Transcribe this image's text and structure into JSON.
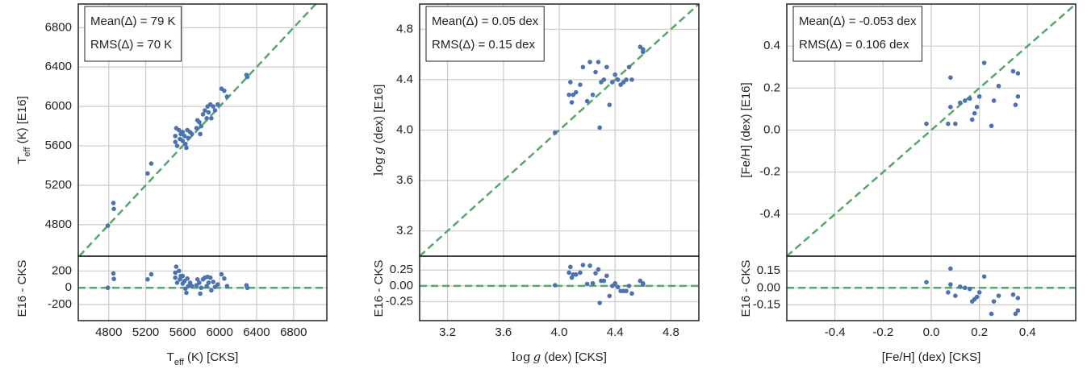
{
  "chart_data": [
    {
      "type": "scatter",
      "color": "#4c72b0",
      "ref_line": "identity",
      "ref_color": "#55a868",
      "grid": true,
      "label_style": "subscript",
      "xlabel": [
        "T",
        "eff",
        " (K) [CKS]"
      ],
      "ylabel": [
        "T",
        "eff",
        " (K) [E16]"
      ],
      "annotations": [
        "Mean(Δ) = 79 K",
        "RMS(Δ) = 70 K"
      ],
      "xlim": [
        4470,
        7160
      ],
      "ylim": [
        4480,
        7040
      ],
      "xticks": [
        4800,
        5200,
        5600,
        6000,
        6400,
        6800
      ],
      "yticks": [
        4800,
        5200,
        5600,
        6000,
        6400,
        6800
      ],
      "x": [
        4790,
        4850,
        4855,
        5220,
        5260,
        5520,
        5520,
        5530,
        5540,
        5560,
        5570,
        5580,
        5600,
        5600,
        5620,
        5630,
        5640,
        5650,
        5660,
        5680,
        5700,
        5750,
        5760,
        5780,
        5790,
        5800,
        5820,
        5840,
        5860,
        5870,
        5880,
        5900,
        5910,
        5930,
        5950,
        5980,
        6020,
        6050,
        6080,
        6290,
        6300
      ],
      "y": [
        4790,
        5020,
        4960,
        5320,
        5420,
        5640,
        5700,
        5780,
        5600,
        5760,
        5670,
        5720,
        5740,
        5650,
        5700,
        5620,
        5580,
        5760,
        5680,
        5740,
        5720,
        5780,
        5860,
        5840,
        5720,
        5800,
        5920,
        5960,
        5880,
        6000,
        5940,
        6020,
        5880,
        6000,
        5960,
        6020,
        6180,
        6160,
        6100,
        6320,
        6300
      ],
      "residual": {
        "type": "scatter",
        "ref_line": "zero",
        "ylabel": "E16 - CKS",
        "ylim": [
          -390,
          375
        ],
        "yticks": [
          -200,
          0,
          200
        ],
        "x": [
          4790,
          4850,
          4855,
          5220,
          5260,
          5520,
          5520,
          5530,
          5540,
          5560,
          5570,
          5580,
          5600,
          5600,
          5620,
          5630,
          5640,
          5650,
          5660,
          5680,
          5700,
          5750,
          5760,
          5780,
          5790,
          5800,
          5820,
          5840,
          5860,
          5870,
          5880,
          5900,
          5910,
          5930,
          5950,
          5980,
          6020,
          6050,
          6080,
          6290,
          6300
        ],
        "y": [
          0,
          170,
          105,
          100,
          160,
          120,
          180,
          250,
          60,
          200,
          100,
          140,
          140,
          50,
          80,
          -10,
          -60,
          110,
          20,
          60,
          20,
          30,
          100,
          60,
          -70,
          0,
          100,
          120,
          20,
          130,
          60,
          120,
          -30,
          70,
          10,
          40,
          160,
          110,
          20,
          30,
          0
        ]
      }
    },
    {
      "type": "scatter",
      "color": "#4c72b0",
      "ref_line": "identity",
      "ref_color": "#55a868",
      "grid": true,
      "label_style": "math",
      "xlabel": [
        "log",
        "g",
        " (dex) [CKS]"
      ],
      "ylabel": [
        "log",
        "g",
        " (dex) [E16]"
      ],
      "annotations": [
        "Mean(Δ) = 0.05 dex",
        "RMS(Δ) = 0.15 dex"
      ],
      "xlim": [
        3.0,
        5.0
      ],
      "ylim": [
        3.0,
        5.0
      ],
      "xticks": [
        3.2,
        3.6,
        {
          "value": 4,
          "label": "4.0"
        },
        4.4,
        4.8
      ],
      "yticks": [
        3.2,
        3.6,
        {
          "value": 4,
          "label": "4.0"
        },
        4.4,
        4.8
      ],
      "x": [
        3.97,
        4.07,
        4.08,
        4.09,
        4.1,
        4.12,
        4.15,
        4.17,
        4.2,
        4.22,
        4.24,
        4.26,
        4.28,
        4.29,
        4.3,
        4.32,
        4.34,
        4.36,
        4.38,
        4.4,
        4.42,
        4.44,
        4.46,
        4.48,
        4.5,
        4.52,
        4.58,
        4.6,
        4.6
      ],
      "y": [
        3.98,
        4.28,
        4.38,
        4.22,
        4.28,
        4.3,
        4.36,
        4.5,
        4.23,
        4.54,
        4.28,
        4.46,
        4.54,
        4.02,
        4.38,
        4.4,
        4.5,
        4.2,
        4.38,
        4.44,
        4.4,
        4.36,
        4.38,
        4.4,
        4.5,
        4.4,
        4.66,
        4.64,
        4.62
      ],
      "residual": {
        "type": "scatter",
        "ref_line": "zero",
        "ylabel": "E16 - CKS",
        "ylim": [
          -0.55,
          0.47
        ],
        "yticks": [
          -0.25,
          {
            "value": 0,
            "label": "0.00"
          },
          0.25
        ],
        "x": [
          3.97,
          4.07,
          4.08,
          4.09,
          4.1,
          4.12,
          4.15,
          4.17,
          4.2,
          4.22,
          4.24,
          4.26,
          4.28,
          4.29,
          4.3,
          4.32,
          4.34,
          4.36,
          4.38,
          4.4,
          4.42,
          4.44,
          4.46,
          4.48,
          4.5,
          4.52,
          4.58,
          4.6,
          4.6
        ],
        "y": [
          0.01,
          0.21,
          0.3,
          0.13,
          0.18,
          0.18,
          0.21,
          0.33,
          0.03,
          0.32,
          0.04,
          0.2,
          0.26,
          -0.27,
          0.08,
          0.08,
          0.16,
          -0.16,
          0.0,
          0.04,
          -0.02,
          -0.08,
          -0.08,
          -0.08,
          0.0,
          -0.12,
          0.08,
          0.04,
          0.02
        ]
      }
    },
    {
      "type": "scatter",
      "color": "#4c72b0",
      "ref_line": "identity",
      "ref_color": "#55a868",
      "grid": true,
      "xlabel": "[Fe/H] (dex) [CKS]",
      "ylabel": "[Fe/H] (dex) [E16]",
      "annotations": [
        "Mean(Δ) = -0.053 dex",
        "RMS(Δ) = 0.106 dex"
      ],
      "xlim": [
        -0.6,
        0.6
      ],
      "ylim": [
        -0.6,
        0.6
      ],
      "xticks": [
        -0.4,
        -0.2,
        {
          "value": 0,
          "label": "0.0"
        },
        0.2,
        0.4
      ],
      "yticks": [
        -0.4,
        -0.2,
        {
          "value": 0,
          "label": "0.0"
        },
        0.2,
        0.4
      ],
      "x": [
        -0.02,
        0.07,
        0.08,
        0.08,
        0.1,
        0.12,
        0.14,
        0.16,
        0.17,
        0.18,
        0.19,
        0.2,
        0.22,
        0.25,
        0.26,
        0.28,
        0.34,
        0.35,
        0.36,
        0.36
      ],
      "y": [
        0.03,
        0.03,
        0.11,
        0.25,
        0.03,
        0.13,
        0.14,
        0.15,
        0.05,
        0.08,
        0.11,
        0.16,
        0.32,
        0.02,
        0.14,
        0.21,
        0.28,
        0.12,
        0.27,
        0.16
      ],
      "residual": {
        "type": "scatter",
        "ref_line": "zero",
        "ylabel": "E16 - CKS",
        "ylim": [
          -0.29,
          0.28
        ],
        "yticks": [
          -0.15,
          {
            "value": 0,
            "label": "0.00"
          },
          0.15
        ],
        "x": [
          -0.02,
          0.07,
          0.08,
          0.08,
          0.1,
          0.12,
          0.14,
          0.16,
          0.17,
          0.18,
          0.19,
          0.2,
          0.22,
          0.25,
          0.26,
          0.28,
          0.34,
          0.35,
          0.36,
          0.36
        ],
        "y": [
          0.05,
          -0.04,
          0.03,
          0.17,
          -0.07,
          0.01,
          0.0,
          -0.01,
          -0.12,
          -0.1,
          -0.08,
          -0.04,
          0.1,
          -0.23,
          -0.12,
          -0.07,
          -0.06,
          -0.23,
          -0.09,
          -0.2
        ]
      }
    }
  ]
}
